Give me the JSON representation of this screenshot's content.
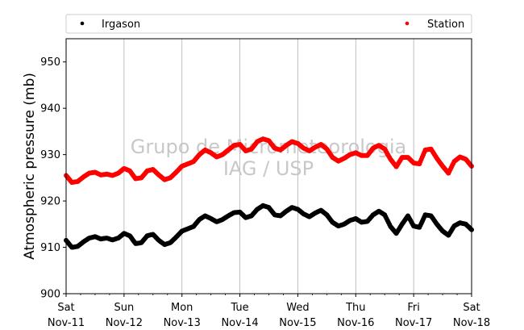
{
  "chart_data": {
    "type": "scatter",
    "ylabel": "Atmospheric pressure (mb)",
    "ylim": [
      900,
      955
    ],
    "yticks": [
      900,
      910,
      920,
      930,
      940,
      950
    ],
    "ytick_labels": [
      "900",
      "910",
      "920",
      "930",
      "940",
      "950"
    ],
    "xlim": [
      0,
      7
    ],
    "x_unit": "days since Sat Nov-11 00:00",
    "xticks": [
      0,
      1,
      2,
      3,
      4,
      5,
      6,
      7
    ],
    "xtick_labels": [
      [
        "Sat",
        "Nov-11"
      ],
      [
        "Sun",
        "Nov-12"
      ],
      [
        "Mon",
        "Nov-13"
      ],
      [
        "Tue",
        "Nov-14"
      ],
      [
        "Wed",
        "Nov-15"
      ],
      [
        "Thu",
        "Nov-16"
      ],
      [
        "Fri",
        "Nov-17"
      ],
      [
        "Sat",
        "Nov-18"
      ]
    ],
    "grid": "vertical",
    "legend_placement": "top, above plot",
    "watermark": [
      "Grupo de Micrometeorologia",
      "IAG / USP"
    ],
    "series": [
      {
        "name": "Irgason",
        "color": "#000000",
        "x": [
          0.0,
          0.1,
          0.2,
          0.3,
          0.4,
          0.5,
          0.6,
          0.7,
          0.8,
          0.9,
          1.0,
          1.1,
          1.2,
          1.3,
          1.4,
          1.5,
          1.6,
          1.7,
          1.8,
          1.9,
          2.0,
          2.1,
          2.2,
          2.3,
          2.4,
          2.5,
          2.6,
          2.7,
          2.8,
          2.9,
          3.0,
          3.1,
          3.2,
          3.3,
          3.4,
          3.5,
          3.6,
          3.7,
          3.8,
          3.9,
          4.0,
          4.1,
          4.2,
          4.3,
          4.4,
          4.5,
          4.6,
          4.7,
          4.8,
          4.9,
          5.0,
          5.1,
          5.2,
          5.3,
          5.4,
          5.5,
          5.6,
          5.7,
          5.8,
          5.9,
          6.0,
          6.1,
          6.2,
          6.3,
          6.4,
          6.5,
          6.6,
          6.7,
          6.8,
          6.9,
          7.0
        ],
        "y": [
          911.5,
          910.0,
          910.2,
          911.2,
          912.0,
          912.3,
          911.8,
          912.0,
          911.6,
          912.0,
          913.0,
          912.5,
          910.8,
          911.0,
          912.5,
          912.8,
          911.5,
          910.6,
          911.0,
          912.2,
          913.5,
          914.0,
          914.5,
          916.0,
          916.8,
          916.2,
          915.5,
          916.0,
          916.8,
          917.5,
          917.6,
          916.4,
          916.8,
          918.2,
          919.0,
          918.6,
          917.0,
          916.8,
          917.8,
          918.6,
          918.2,
          917.2,
          916.6,
          917.4,
          918.0,
          917.0,
          915.4,
          914.6,
          915.0,
          915.8,
          916.2,
          915.4,
          915.6,
          917.0,
          917.8,
          917.0,
          914.5,
          913.0,
          915.0,
          916.8,
          914.6,
          914.3,
          917.0,
          916.8,
          915.0,
          913.5,
          912.6,
          914.6,
          915.3,
          915.0,
          913.8
        ]
      },
      {
        "name": "Station",
        "color": "#ff0000",
        "x": [
          0.0,
          0.1,
          0.2,
          0.3,
          0.4,
          0.5,
          0.6,
          0.7,
          0.8,
          0.9,
          1.0,
          1.1,
          1.2,
          1.3,
          1.4,
          1.5,
          1.6,
          1.7,
          1.8,
          1.9,
          2.0,
          2.1,
          2.2,
          2.3,
          2.4,
          2.5,
          2.6,
          2.7,
          2.8,
          2.9,
          3.0,
          3.1,
          3.2,
          3.3,
          3.4,
          3.5,
          3.6,
          3.7,
          3.8,
          3.9,
          4.0,
          4.1,
          4.2,
          4.3,
          4.4,
          4.5,
          4.6,
          4.7,
          4.8,
          4.9,
          5.0,
          5.1,
          5.2,
          5.3,
          5.4,
          5.5,
          5.6,
          5.7,
          5.8,
          5.9,
          6.0,
          6.1,
          6.2,
          6.3,
          6.4,
          6.5,
          6.6,
          6.7,
          6.8,
          6.9,
          7.0
        ],
        "y": [
          925.5,
          924.0,
          924.2,
          925.2,
          926.0,
          926.2,
          925.6,
          925.8,
          925.5,
          926.0,
          927.0,
          926.5,
          924.8,
          925.0,
          926.5,
          926.8,
          925.6,
          924.6,
          925.0,
          926.2,
          927.5,
          928.0,
          928.5,
          930.0,
          931.0,
          930.4,
          929.5,
          930.0,
          931.0,
          932.0,
          932.2,
          930.8,
          931.2,
          932.8,
          933.4,
          933.0,
          931.4,
          931.0,
          932.0,
          932.8,
          932.4,
          931.4,
          930.8,
          931.6,
          932.2,
          931.2,
          929.4,
          928.6,
          929.2,
          930.0,
          930.4,
          929.8,
          929.8,
          931.4,
          932.0,
          931.2,
          929.0,
          927.4,
          929.4,
          929.4,
          928.2,
          928.0,
          931.0,
          931.2,
          929.2,
          927.5,
          926.0,
          928.5,
          929.5,
          929.0,
          927.5
        ]
      }
    ]
  }
}
